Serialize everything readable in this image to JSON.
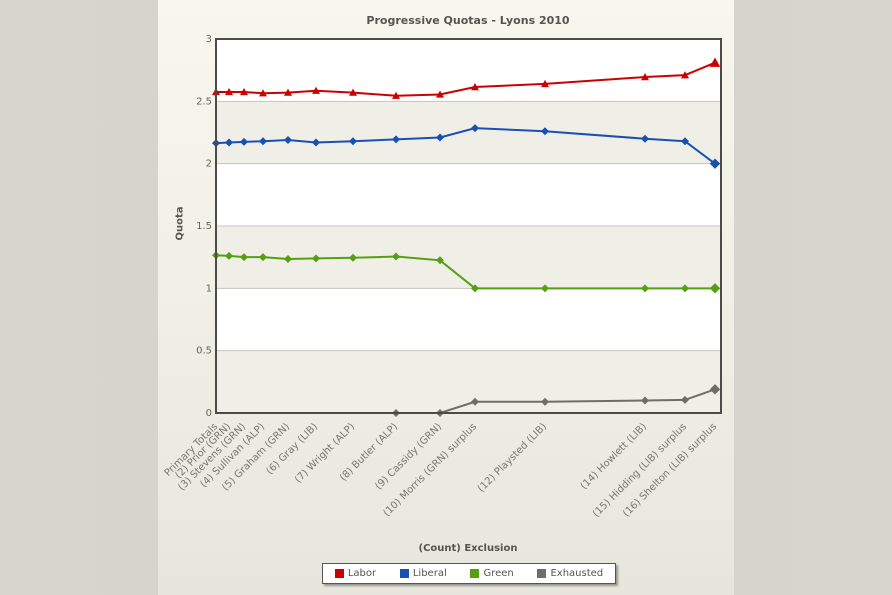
{
  "chart_data": {
    "type": "line",
    "title": "Progressive Quotas - Lyons 2010",
    "xlabel": "(Count) Exclusion",
    "ylabel": "Quota",
    "ylim": [
      0,
      3
    ],
    "yticks": [
      "0",
      "0.5",
      "1",
      "1.5",
      "2",
      "2.5",
      "3"
    ],
    "grid": true,
    "legend_position": "bottom",
    "categories": [
      "Primary Totals",
      "(2) Prior (GRN)",
      "(3) Stevens (GRN)",
      "(4) Sullivan (ALP)",
      "(5) Graham (GRN)",
      "(6) Gray (LIB)",
      "(7) Wright (ALP)",
      "(8) Butler (ALP)",
      "(9) Cassidy (GRN)",
      "(10) Morris (GRN) surplus",
      "(12) Playsted (LIB)",
      "(14) Howlett (LIB)",
      "(15) Hidding (LIB) surplus",
      "(16) Shelton (LIB) surplus"
    ],
    "x_positions": [
      216,
      229,
      244,
      263,
      288,
      316,
      353,
      396,
      440,
      475,
      545,
      645,
      685,
      715
    ],
    "series": [
      {
        "name": "Labor",
        "color": "#cc0000",
        "marker": "triangle",
        "values": [
          2.575,
          2.575,
          2.575,
          2.565,
          2.57,
          2.585,
          2.57,
          2.545,
          2.555,
          2.615,
          2.64,
          2.695,
          2.71,
          2.81
        ]
      },
      {
        "name": "Liberal",
        "color": "#1a4fb3",
        "marker": "diamond",
        "values": [
          2.165,
          2.17,
          2.175,
          2.18,
          2.19,
          2.17,
          2.18,
          2.195,
          2.21,
          2.285,
          2.26,
          2.2,
          2.18,
          2.0
        ]
      },
      {
        "name": "Green",
        "color": "#55a010",
        "marker": "diamond",
        "values": [
          1.265,
          1.26,
          1.25,
          1.25,
          1.235,
          1.24,
          1.245,
          1.255,
          1.225,
          1.0,
          1.0,
          1.0,
          1.0,
          1.0
        ]
      },
      {
        "name": "Exhausted",
        "color": "#706d67",
        "marker": "diamond",
        "values": [
          null,
          null,
          null,
          null,
          null,
          null,
          null,
          0,
          0,
          0.09,
          0.09,
          0.1,
          0.105,
          0.19
        ]
      }
    ]
  }
}
